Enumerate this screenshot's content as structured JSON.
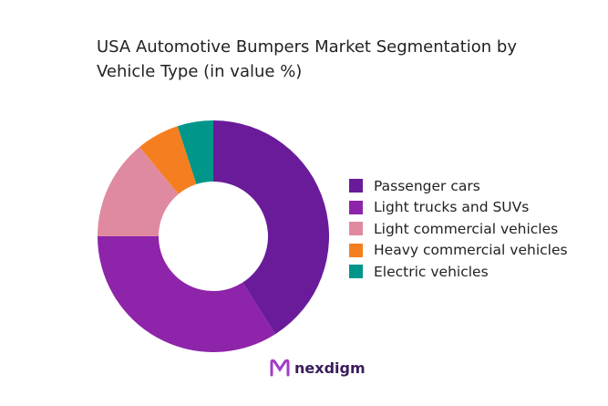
{
  "chart_data": {
    "type": "pie",
    "donut": true,
    "title": "USA Automotive Bumpers Market Segmentation by Vehicle Type (in value %)",
    "categories": [
      "Passenger cars",
      "Light trucks and SUVs",
      "Light commercial vehicles",
      "Heavy commercial vehicles",
      "Electric vehicles"
    ],
    "values": [
      41,
      34,
      14,
      6,
      5
    ],
    "colors": [
      "#6a1b9a",
      "#8e24aa",
      "#df8aa1",
      "#f57f20",
      "#00968a"
    ],
    "legend_position": "right"
  },
  "logo": {
    "text": "nexdigm"
  }
}
